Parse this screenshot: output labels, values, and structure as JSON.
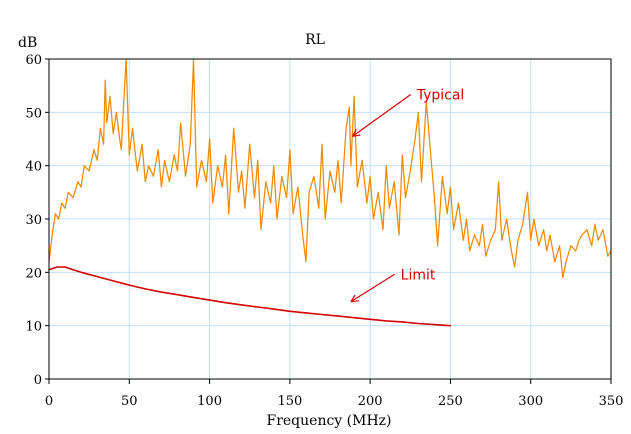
{
  "chart_data": {
    "type": "line",
    "title": "RL",
    "xlabel": "Frequency (MHz)",
    "ylabel": "dB",
    "xlim": [
      0,
      350
    ],
    "ylim": [
      0,
      60
    ],
    "x_ticks": [
      0,
      50,
      100,
      150,
      200,
      250,
      300,
      350
    ],
    "y_ticks": [
      0,
      10,
      20,
      30,
      40,
      50,
      60
    ],
    "grid": true,
    "colors": {
      "typical": "#f08a00",
      "limit": "#d40000",
      "grid": "#bfe0f5",
      "frame": "#000000"
    },
    "series": [
      {
        "name": "Typical",
        "color": "#f08a00",
        "x": [
          0,
          2,
          4,
          6,
          8,
          10,
          12,
          15,
          18,
          20,
          22,
          25,
          28,
          30,
          32,
          34,
          35,
          36,
          38,
          40,
          42,
          44,
          45,
          46,
          48,
          50,
          52,
          55,
          58,
          60,
          62,
          65,
          68,
          70,
          72,
          75,
          78,
          80,
          82,
          85,
          88,
          90,
          92,
          95,
          98,
          100,
          102,
          105,
          108,
          110,
          112,
          115,
          118,
          120,
          122,
          125,
          128,
          130,
          132,
          135,
          138,
          140,
          142,
          145,
          148,
          150,
          152,
          155,
          158,
          160,
          162,
          165,
          168,
          170,
          172,
          175,
          178,
          180,
          182,
          185,
          187,
          188,
          190,
          192,
          195,
          198,
          200,
          202,
          205,
          208,
          210,
          212,
          215,
          218,
          220,
          222,
          225,
          228,
          230,
          232,
          235,
          238,
          240,
          242,
          245,
          248,
          250,
          252,
          255,
          258,
          260,
          262,
          265,
          268,
          270,
          272,
          275,
          278,
          280,
          282,
          285,
          288,
          290,
          292,
          295,
          298,
          300,
          302,
          305,
          308,
          310,
          312,
          315,
          318,
          320,
          322,
          325,
          328,
          330,
          332,
          335,
          338,
          340,
          342,
          345,
          348,
          350
        ],
        "values": [
          22,
          27,
          31,
          30,
          33,
          32,
          35,
          34,
          37,
          36,
          40,
          39,
          43,
          41,
          47,
          44,
          56,
          48,
          53,
          46,
          50,
          45,
          43,
          49,
          60,
          42,
          47,
          39,
          44,
          37,
          40,
          38,
          43,
          36,
          41,
          37,
          42,
          39,
          48,
          38,
          44,
          60,
          36,
          41,
          37,
          45,
          33,
          40,
          36,
          42,
          31,
          47,
          35,
          39,
          32,
          44,
          34,
          41,
          28,
          37,
          33,
          40,
          30,
          38,
          34,
          43,
          31,
          36,
          27,
          22,
          35,
          38,
          32,
          44,
          30,
          39,
          35,
          41,
          33,
          47,
          51,
          40,
          53,
          36,
          41,
          33,
          38,
          30,
          35,
          28,
          40,
          32,
          37,
          27,
          42,
          34,
          39,
          45,
          50,
          37,
          52,
          41,
          34,
          25,
          38,
          31,
          36,
          28,
          33,
          26,
          30,
          24,
          27,
          25,
          29,
          23,
          26,
          28,
          37,
          26,
          30,
          24,
          21,
          26,
          29,
          35,
          26,
          30,
          25,
          28,
          24,
          27,
          22,
          25,
          19,
          22,
          25,
          24,
          26,
          27,
          28,
          25,
          29,
          26,
          28,
          23,
          24
        ]
      },
      {
        "name": "Limit",
        "color": "#d40000",
        "x": [
          0,
          5,
          10,
          15,
          20,
          30,
          40,
          50,
          60,
          70,
          80,
          90,
          100,
          110,
          120,
          130,
          140,
          150,
          160,
          170,
          180,
          190,
          200,
          210,
          220,
          230,
          240,
          250
        ],
        "values": [
          20.5,
          21,
          21,
          20.5,
          20,
          19.2,
          18.4,
          17.6,
          16.9,
          16.3,
          15.8,
          15.3,
          14.8,
          14.3,
          13.9,
          13.5,
          13.1,
          12.7,
          12.4,
          12.1,
          11.8,
          11.5,
          11.2,
          10.9,
          10.7,
          10.4,
          10.2,
          10
        ]
      }
    ],
    "annotations": [
      {
        "text": "Typical",
        "color": "#d40000",
        "label_x": 229,
        "label_y": 52.4,
        "arrow_to": [
          189,
          45.5
        ]
      },
      {
        "text": "Limit",
        "color": "#d40000",
        "label_x": 219,
        "label_y": 18.7,
        "arrow_to": [
          188,
          14.5
        ]
      }
    ]
  }
}
